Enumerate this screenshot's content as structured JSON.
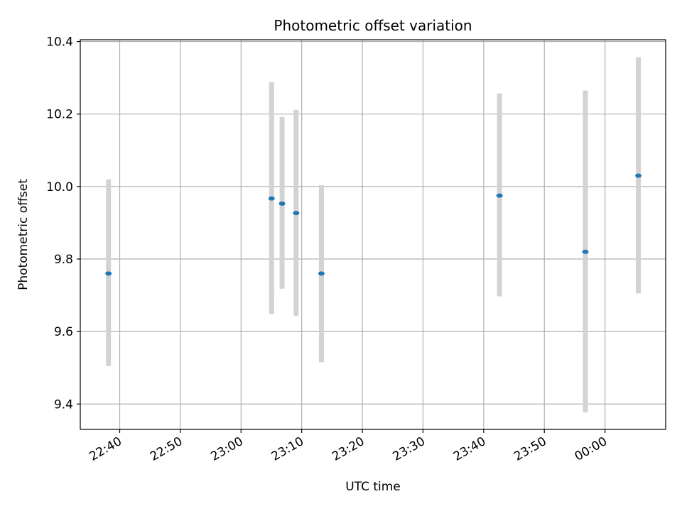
{
  "chart_data": {
    "type": "scatter",
    "title": "Photometric offset variation",
    "xlabel": "UTC time",
    "ylabel": "Photometric offset",
    "grid": true,
    "xlim": [
      "22:33:30",
      "00:10:00"
    ],
    "ylim": [
      9.33,
      10.405
    ],
    "x_ticks": [
      "22:40",
      "22:50",
      "23:00",
      "23:10",
      "23:20",
      "23:30",
      "23:40",
      "23:50",
      "00:00"
    ],
    "y_ticks": [
      "9.4",
      "9.6",
      "9.8",
      "10.0",
      "10.2",
      "10.4"
    ],
    "series": [
      {
        "marker_color": "#1f77b4",
        "errorbar_color": "#d3d3d3",
        "points": [
          {
            "x": "22:38:09",
            "y": 9.76,
            "yerr_low": 9.505,
            "yerr_high": 10.02
          },
          {
            "x": "23:05:02",
            "y": 9.967,
            "yerr_low": 9.648,
            "yerr_high": 10.288
          },
          {
            "x": "23:06:46",
            "y": 9.953,
            "yerr_low": 9.718,
            "yerr_high": 10.192
          },
          {
            "x": "23:09:05",
            "y": 9.927,
            "yerr_low": 9.643,
            "yerr_high": 10.212
          },
          {
            "x": "23:13:15",
            "y": 9.76,
            "yerr_low": 9.515,
            "yerr_high": 10.004
          },
          {
            "x": "23:42:37",
            "y": 9.975,
            "yerr_low": 9.697,
            "yerr_high": 10.257
          },
          {
            "x": "23:56:46",
            "y": 9.82,
            "yerr_low": 9.377,
            "yerr_high": 10.265
          },
          {
            "x": "00:05:30",
            "y": 10.03,
            "yerr_low": 9.705,
            "yerr_high": 10.357
          }
        ]
      }
    ]
  }
}
